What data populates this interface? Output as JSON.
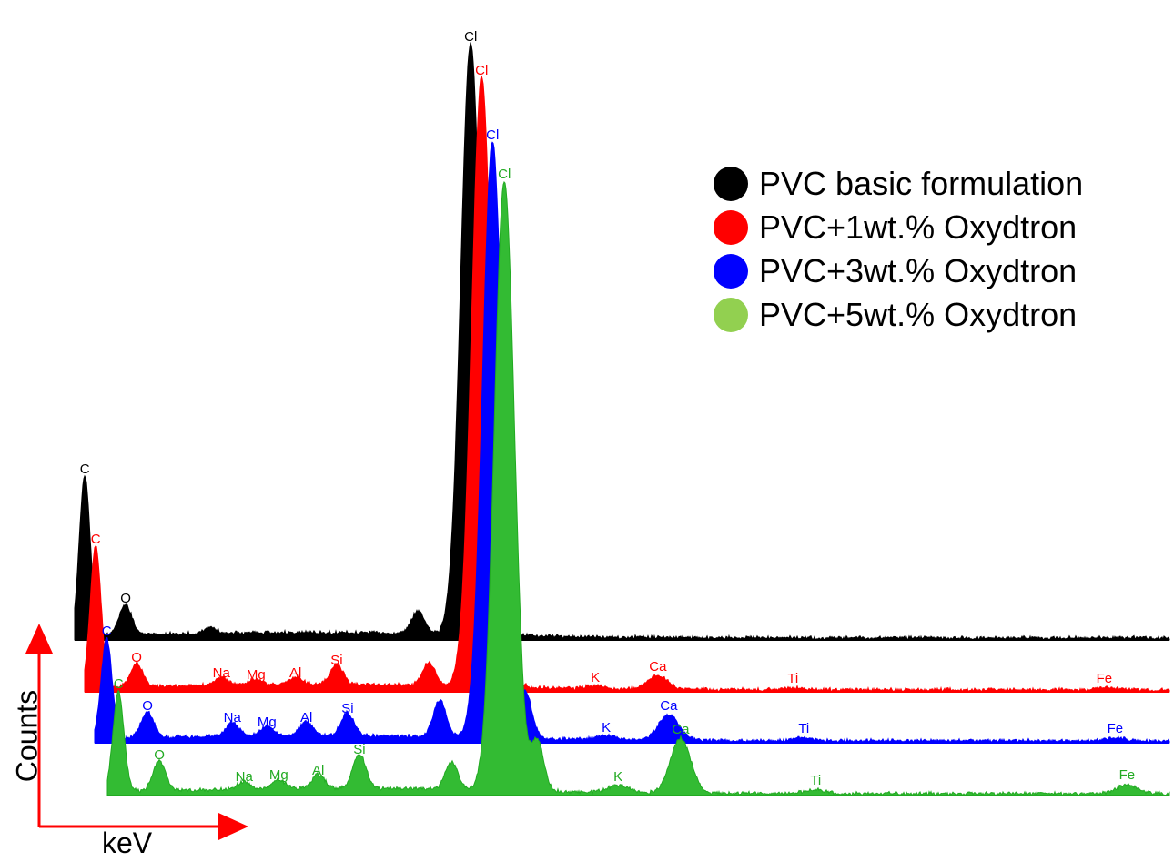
{
  "chart_data": {
    "type": "area",
    "xlabel": "keV",
    "ylabel": "Counts",
    "legend_position": "top-right",
    "legend": [
      {
        "label": "PVC basic formulation",
        "color": "#000000"
      },
      {
        "label": "PVC+1wt.% Oxydtron",
        "color": "#ff0000"
      },
      {
        "label": "PVC+3wt.% Oxydtron",
        "color": "#0000ff"
      },
      {
        "label": "PVC+5wt.% Oxydtron",
        "color": "#92d050"
      }
    ],
    "series": [
      {
        "name": "PVC basic formulation",
        "color": "#000000",
        "fill": "#000000",
        "peaks": [
          {
            "element": "C",
            "x": 0.277,
            "height": 175
          },
          {
            "element": "O",
            "x": 0.525,
            "height": 33
          },
          {
            "element": "",
            "x": 1.04,
            "height": 6
          },
          {
            "element": "",
            "x": 2.3,
            "height": 25
          },
          {
            "element": "Cl",
            "x": 2.62,
            "height": 650
          }
        ],
        "labels": [
          "C",
          "O",
          "Cl"
        ]
      },
      {
        "name": "PVC+1wt.% Oxydtron",
        "color": "#ff0000",
        "fill": "#ff0000",
        "peaks": [
          {
            "element": "C",
            "x": 0.277,
            "height": 155
          },
          {
            "element": "O",
            "x": 0.525,
            "height": 25
          },
          {
            "element": "Na",
            "x": 1.04,
            "height": 8
          },
          {
            "element": "Mg",
            "x": 1.25,
            "height": 6
          },
          {
            "element": "Al",
            "x": 1.49,
            "height": 8
          },
          {
            "element": "Si",
            "x": 1.74,
            "height": 22
          },
          {
            "element": "",
            "x": 2.3,
            "height": 25
          },
          {
            "element": "Cl",
            "x": 2.62,
            "height": 670
          },
          {
            "element": "",
            "x": 2.82,
            "height": 10
          },
          {
            "element": "K",
            "x": 3.31,
            "height": 3
          },
          {
            "element": "Ca",
            "x": 3.69,
            "height": 15
          },
          {
            "element": "Ti",
            "x": 4.51,
            "height": 2
          },
          {
            "element": "Fe",
            "x": 6.4,
            "height": 2
          }
        ],
        "labels": [
          "C",
          "O",
          "Na",
          "Mg",
          "Al",
          "Si",
          "Cl",
          "K",
          "Ca",
          "Ti",
          "Fe"
        ]
      },
      {
        "name": "PVC+3wt.% Oxydtron",
        "color": "#0000ff",
        "fill": "#0000ff",
        "peaks": [
          {
            "element": "C",
            "x": 0.277,
            "height": 110
          },
          {
            "element": "O",
            "x": 0.525,
            "height": 28
          },
          {
            "element": "Na",
            "x": 1.04,
            "height": 15
          },
          {
            "element": "Mg",
            "x": 1.25,
            "height": 10
          },
          {
            "element": "Al",
            "x": 1.49,
            "height": 15
          },
          {
            "element": "Si",
            "x": 1.74,
            "height": 25
          },
          {
            "element": "",
            "x": 2.3,
            "height": 40
          },
          {
            "element": "Cl",
            "x": 2.62,
            "height": 655
          },
          {
            "element": "",
            "x": 2.82,
            "height": 50
          },
          {
            "element": "K",
            "x": 3.31,
            "height": 4
          },
          {
            "element": "Ca",
            "x": 3.69,
            "height": 28
          },
          {
            "element": "Ti",
            "x": 4.51,
            "height": 3
          },
          {
            "element": "Fe",
            "x": 6.4,
            "height": 3
          }
        ],
        "labels": [
          "C",
          "O",
          "Na",
          "Mg",
          "Al",
          "Si",
          "Cl",
          "K",
          "Ca",
          "Ti",
          "Fe"
        ]
      },
      {
        "name": "PVC+5wt.% Oxydtron",
        "color": "#22aa22",
        "fill": "#33bb33",
        "peaks": [
          {
            "element": "C",
            "x": 0.277,
            "height": 110
          },
          {
            "element": "O",
            "x": 0.525,
            "height": 32
          },
          {
            "element": "Na",
            "x": 1.04,
            "height": 8
          },
          {
            "element": "Mg",
            "x": 1.25,
            "height": 10
          },
          {
            "element": "Al",
            "x": 1.49,
            "height": 15
          },
          {
            "element": "Si",
            "x": 1.74,
            "height": 38
          },
          {
            "element": "",
            "x": 2.3,
            "height": 30
          },
          {
            "element": "Cl",
            "x": 2.62,
            "height": 670
          },
          {
            "element": "",
            "x": 2.82,
            "height": 55
          },
          {
            "element": "K",
            "x": 3.31,
            "height": 8
          },
          {
            "element": "Ca",
            "x": 3.69,
            "height": 60
          },
          {
            "element": "Ti",
            "x": 4.51,
            "height": 4
          },
          {
            "element": "Fe",
            "x": 6.4,
            "height": 10
          }
        ],
        "labels": [
          "C",
          "O",
          "Na",
          "Mg",
          "Al",
          "Si",
          "Cl",
          "K",
          "Ca",
          "Ti",
          "Fe"
        ]
      }
    ]
  }
}
